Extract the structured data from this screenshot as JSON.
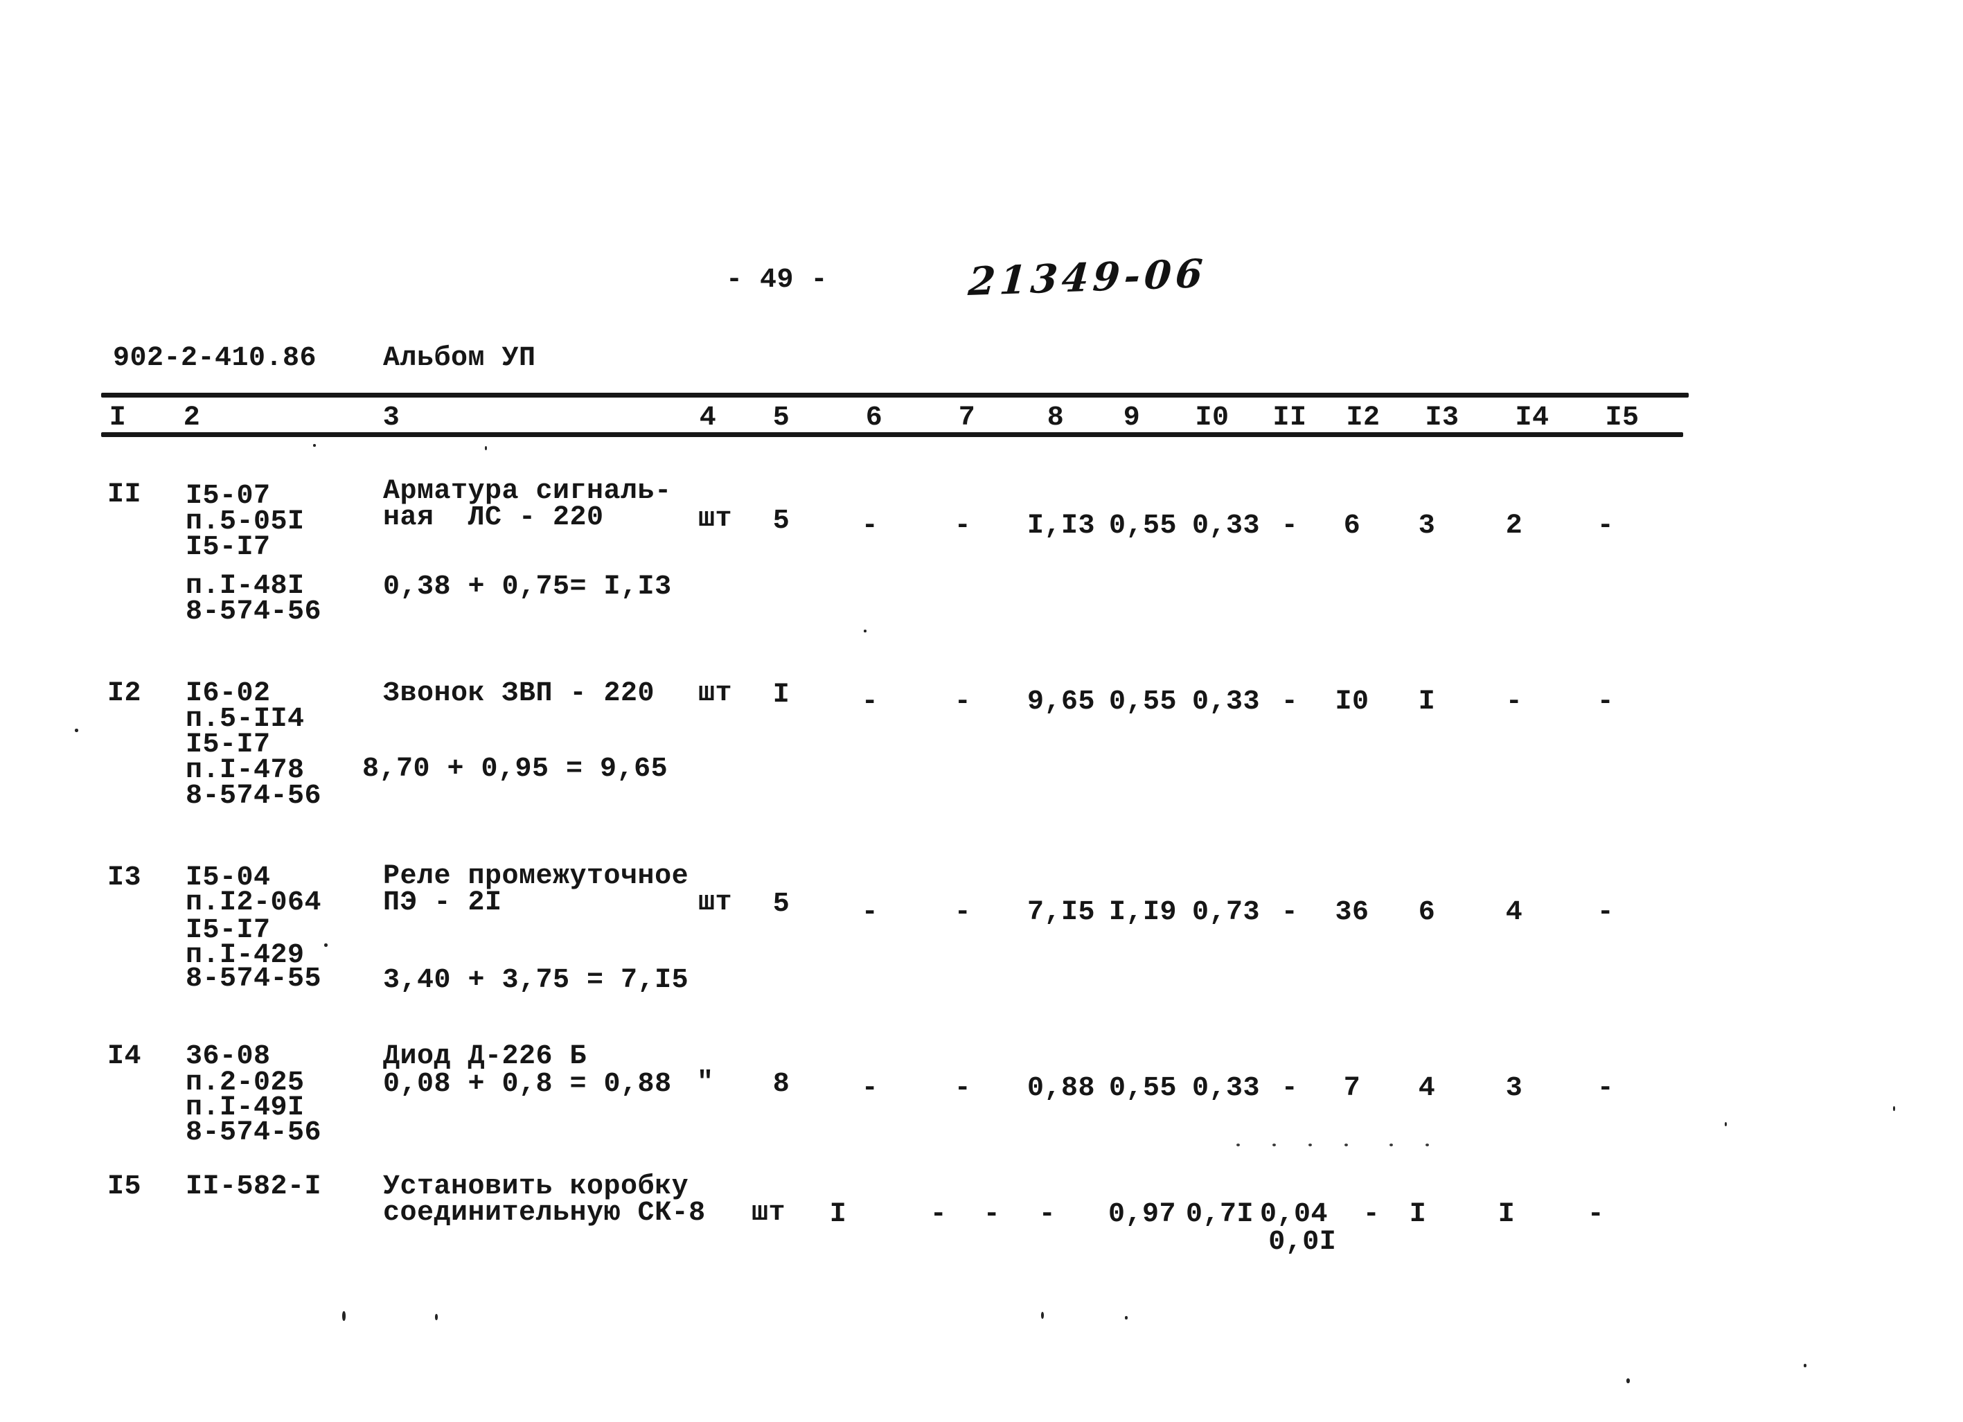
{
  "page": {
    "page_number": "- 49 -",
    "handwritten_stamp": "21349-06",
    "document_code": "902-2-410.86",
    "album_label": "Альбом УП"
  },
  "table": {
    "column_headers": [
      "I",
      "2",
      "3",
      "4",
      "5",
      "6",
      "7",
      "8",
      "9",
      "I0",
      "II",
      "I2",
      "I3",
      "I4",
      "I5"
    ],
    "rows": [
      {
        "position_number": "II",
        "justification_codes": [
          "I5-07",
          "п.5-05I",
          "I5-I7"
        ],
        "justification_codes_extra": [
          "п.I-48I",
          "8-574-56"
        ],
        "name_lines": [
          "Арматура сигналь-",
          "ная  ЛС - 220"
        ],
        "calculation": "0,38 + 0,75= I,I3",
        "unit": "шт",
        "quantity": "5",
        "values": [
          "-",
          "-",
          "I,I3",
          "0,55",
          "0,33",
          "-",
          "6",
          "3",
          "2",
          "-"
        ]
      },
      {
        "position_number": "I2",
        "justification_codes": [
          "I6-02",
          "п.5-II4",
          "I5-I7",
          "п.I-478",
          "8-574-56"
        ],
        "justification_codes_extra": [],
        "name_lines": [
          "Звонок ЗВП - 220"
        ],
        "calculation": "8,70 + 0,95 = 9,65",
        "unit": "шт",
        "quantity": "I",
        "values": [
          "-",
          "-",
          "9,65",
          "0,55",
          "0,33",
          "-",
          "I0",
          "I",
          "-",
          "-"
        ]
      },
      {
        "position_number": "I3",
        "justification_codes": [
          "I5-04",
          "п.I2-064",
          "I5-I7",
          "п.I-429",
          "8-574-55"
        ],
        "justification_codes_extra": [],
        "name_lines": [
          "Реле промежуточное",
          "ПЭ - 2I"
        ],
        "calculation": "3,40 + 3,75 = 7,I5",
        "unit": "шт",
        "quantity": "5",
        "values": [
          "-",
          "-",
          "7,I5",
          "I,I9",
          "0,73",
          "-",
          "36",
          "6",
          "4",
          "-"
        ]
      },
      {
        "position_number": "I4",
        "justification_codes": [
          "36-08",
          "п.2-025",
          "п.I-49I",
          "8-574-56"
        ],
        "justification_codes_extra": [],
        "name_lines": [
          "Диод Д-226 Б"
        ],
        "calculation": "0,08 + 0,8 = 0,88",
        "unit": "\"",
        "quantity": "8",
        "values": [
          "-",
          "-",
          "0,88",
          "0,55",
          "0,33",
          "-",
          "7",
          "4",
          "3",
          "-"
        ]
      },
      {
        "position_number": "I5",
        "justification_codes": [
          "II-582-I"
        ],
        "justification_codes_extra": [],
        "name_lines": [
          "Установить коробку",
          "соединительную СК-8"
        ],
        "calculation": "",
        "unit": "шт",
        "quantity": "I",
        "values": [
          "-",
          "-",
          "-",
          "0,97",
          "0,7I",
          "0,04\n 0,0I",
          "-",
          "I",
          "I",
          "-"
        ]
      }
    ]
  }
}
